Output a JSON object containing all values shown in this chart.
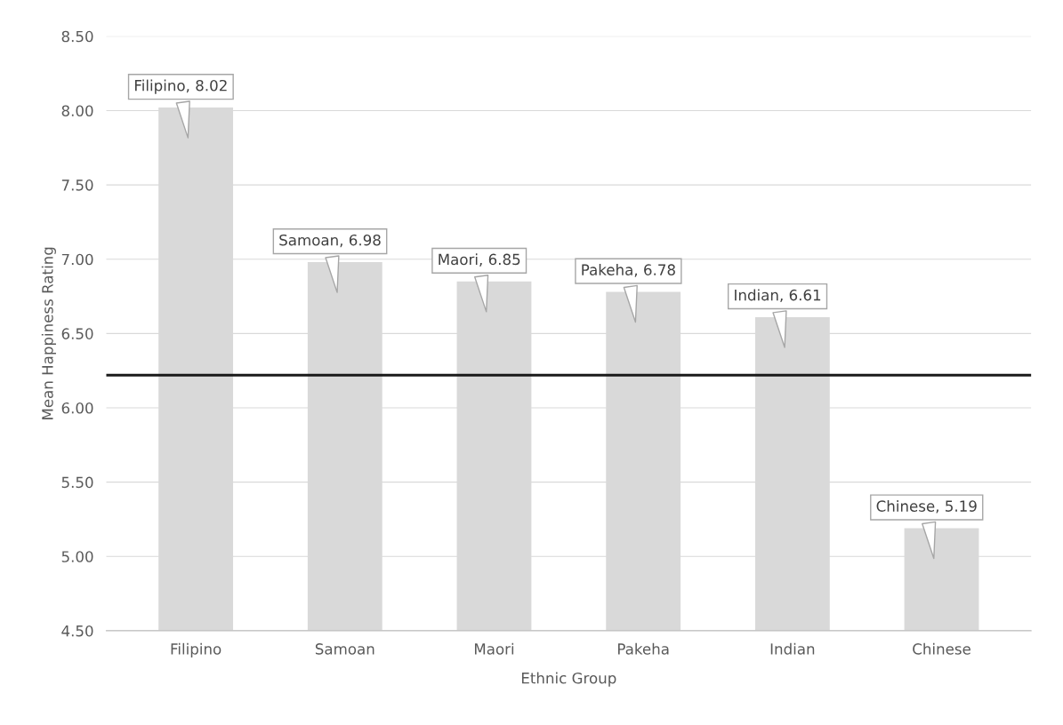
{
  "chart_data": {
    "type": "bar",
    "xlabel": "Ethnic Group",
    "ylabel": "Mean Happiness Rating",
    "categories": [
      "Filipino",
      "Samoan",
      "Maori",
      "Pakeha",
      "Indian",
      "Chinese"
    ],
    "values": [
      8.02,
      6.98,
      6.85,
      6.78,
      6.61,
      5.19
    ],
    "value_labels": [
      "Filipino, 8.02",
      "Samoan, 6.98",
      "Maori, 6.85",
      "Pakeha, 6.78",
      "Indian, 6.61",
      "Chinese, 5.19"
    ],
    "color": "#d9d9d9",
    "ylim": [
      4.5,
      8.5
    ],
    "yticks": [
      {
        "value": 4.5,
        "label": "4.50"
      },
      {
        "value": 5.0,
        "label": "5.00"
      },
      {
        "value": 5.5,
        "label": "5.50"
      },
      {
        "value": 6.0,
        "label": "6.00"
      },
      {
        "value": 6.5,
        "label": "6.50"
      },
      {
        "value": 7.0,
        "label": "7.00"
      },
      {
        "value": 7.5,
        "label": "7.50"
      },
      {
        "value": 8.0,
        "label": "8.00"
      },
      {
        "value": 8.5,
        "label": "8.50"
      }
    ],
    "ref_lines": [
      {
        "axis": "y",
        "value": 6.22,
        "color": "#1a1a1a",
        "line_style": "solid"
      }
    ],
    "grid": "y"
  }
}
